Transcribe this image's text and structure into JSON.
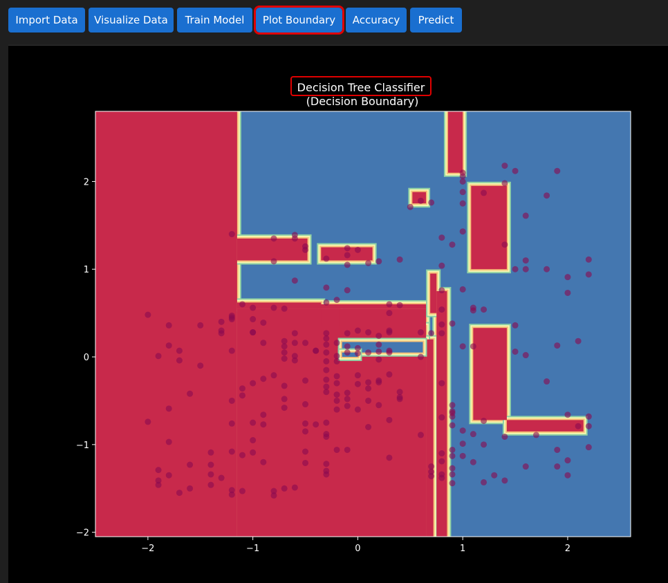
{
  "toolbar": {
    "buttons": [
      {
        "label": "Import Data"
      },
      {
        "label": "Visualize Data"
      },
      {
        "label": "Train Model"
      },
      {
        "label": "Plot Boundary",
        "highlighted": true
      },
      {
        "label": "Accuracy"
      },
      {
        "label": "Predict"
      }
    ]
  },
  "colors": {
    "class0": "#c8294b",
    "class1": "#4477b0",
    "point": "#8b0a50",
    "highlight": "#e00000",
    "button": "#1a6fd0"
  },
  "chart_data": {
    "type": "scatter",
    "title": "Decision Tree Classifier",
    "subtitle": "(Decision Boundary)",
    "xlim": [
      -2.5,
      2.6
    ],
    "ylim": [
      -2.05,
      2.8
    ],
    "xticks": [
      -2,
      -1,
      0,
      1,
      2
    ],
    "yticks": [
      -2,
      -1,
      0,
      1,
      2
    ],
    "xtick_labels": [
      "−2",
      "−1",
      "0",
      "1",
      "2"
    ],
    "ytick_labels": [
      "−2",
      "−1",
      "0",
      "1",
      "2"
    ],
    "grid": false,
    "regions_class0": [
      [
        -2.5,
        -1.15,
        -2.05,
        2.8
      ],
      [
        -1.15,
        0.65,
        -2.05,
        0.55
      ],
      [
        -1.15,
        0.65,
        0.55,
        0.6
      ],
      [
        -1.15,
        -0.48,
        1.1,
        1.35
      ],
      [
        -1.15,
        -0.35,
        0.55,
        0.62
      ],
      [
        -0.35,
        -0.17,
        0.35,
        0.55
      ],
      [
        -0.17,
        0.65,
        0.2,
        0.35
      ],
      [
        0.75,
        0.85,
        -2.05,
        0.75
      ],
      [
        0.69,
        0.75,
        0.5,
        0.95
      ],
      [
        0.65,
        0.72,
        -2.05,
        0.2
      ],
      [
        -0.35,
        0.14,
        1.1,
        1.25
      ],
      [
        0.86,
        1.0,
        2.1,
        2.8
      ],
      [
        1.08,
        1.42,
        1.0,
        1.95
      ],
      [
        0.52,
        0.65,
        1.75,
        1.88
      ],
      [
        1.1,
        1.42,
        -0.72,
        0.33
      ],
      [
        1.42,
        2.15,
        -0.85,
        -0.72
      ],
      [
        -0.17,
        0.65,
        0.05,
        0.2
      ]
    ],
    "regions_class1_overlay": [
      [
        -0.15,
        0.62,
        0.05,
        0.17
      ],
      [
        -0.15,
        0.0,
        0.0,
        0.05
      ]
    ],
    "points": [
      [
        -2.0,
        0.48
      ],
      [
        -1.9,
        0.01
      ],
      [
        -1.8,
        0.36
      ],
      [
        -1.8,
        0.13
      ],
      [
        -1.7,
        0.07
      ],
      [
        -1.7,
        -0.04
      ],
      [
        -1.5,
        0.36
      ],
      [
        -1.5,
        -0.1
      ],
      [
        -1.6,
        -0.42
      ],
      [
        -1.8,
        -0.59
      ],
      [
        -2.0,
        -0.74
      ],
      [
        -1.8,
        -0.97
      ],
      [
        -1.6,
        -1.23
      ],
      [
        -1.8,
        -1.35
      ],
      [
        -1.9,
        -1.29
      ],
      [
        -1.9,
        -1.41
      ],
      [
        -1.9,
        -1.46
      ],
      [
        -1.7,
        -1.55
      ],
      [
        -1.6,
        -1.5
      ],
      [
        -1.4,
        -1.09
      ],
      [
        -1.4,
        -1.23
      ],
      [
        -1.4,
        -1.34
      ],
      [
        -1.4,
        -1.46
      ],
      [
        -1.3,
        -1.38
      ],
      [
        -1.2,
        -1.52
      ],
      [
        -1.2,
        -1.57
      ],
      [
        -1.1,
        -1.53
      ],
      [
        -1.2,
        -1.08
      ],
      [
        -1.1,
        -1.12
      ],
      [
        -1.0,
        -1.09
      ],
      [
        -0.9,
        -1.2
      ],
      [
        -1.0,
        -0.95
      ],
      [
        -1.0,
        -0.75
      ],
      [
        -0.9,
        -0.66
      ],
      [
        -0.9,
        -0.77
      ],
      [
        -1.2,
        -0.76
      ],
      [
        -1.2,
        -0.5
      ],
      [
        -1.1,
        -0.44
      ],
      [
        -1.1,
        -0.36
      ],
      [
        -1.0,
        -0.3
      ],
      [
        -0.9,
        -0.25
      ],
      [
        -0.8,
        -0.21
      ],
      [
        -0.7,
        -0.33
      ],
      [
        -0.7,
        -0.48
      ],
      [
        -0.7,
        -0.58
      ],
      [
        -0.7,
        -1.5
      ],
      [
        -0.8,
        -1.53
      ],
      [
        -0.8,
        -1.58
      ],
      [
        -0.6,
        -1.49
      ],
      [
        -0.5,
        -1.08
      ],
      [
        -0.5,
        -1.21
      ],
      [
        -0.5,
        -0.76
      ],
      [
        -0.5,
        -0.85
      ],
      [
        -0.4,
        -0.77
      ],
      [
        -0.3,
        -0.75
      ],
      [
        -0.3,
        -0.88
      ],
      [
        -0.3,
        -0.91
      ],
      [
        -0.3,
        -1.22
      ],
      [
        -0.3,
        -1.3
      ],
      [
        -0.3,
        -1.34
      ],
      [
        -0.2,
        -1.06
      ],
      [
        -0.1,
        -1.06
      ],
      [
        -0.2,
        -0.6
      ],
      [
        -0.2,
        -0.5
      ],
      [
        -0.2,
        -0.43
      ],
      [
        -0.1,
        -0.48
      ],
      [
        -0.1,
        -0.56
      ],
      [
        -0.2,
        -0.3
      ],
      [
        -0.2,
        -0.22
      ],
      [
        -0.3,
        -0.26
      ],
      [
        -0.3,
        -0.34
      ],
      [
        -0.3,
        -0.4
      ],
      [
        -0.3,
        -0.15
      ],
      [
        -0.3,
        -0.05
      ],
      [
        -0.5,
        -0.27
      ],
      [
        -0.5,
        -0.54
      ],
      [
        -0.6,
        0.01
      ],
      [
        -0.5,
        0.16
      ],
      [
        -0.4,
        0.07
      ],
      [
        -0.3,
        0.05
      ],
      [
        -0.3,
        0.14
      ],
      [
        -0.3,
        0.27
      ],
      [
        -0.1,
        0.27
      ],
      [
        0.0,
        0.3
      ],
      [
        0.1,
        0.28
      ],
      [
        0.2,
        0.24
      ],
      [
        0.3,
        0.28
      ],
      [
        0.3,
        0.3
      ],
      [
        0.0,
        0.1
      ],
      [
        0.1,
        0.05
      ],
      [
        0.0,
        0.04
      ],
      [
        0.2,
        0.06
      ],
      [
        0.3,
        0.07
      ],
      [
        0.3,
        0.05
      ],
      [
        0.3,
        -0.2
      ],
      [
        0.2,
        -0.29
      ],
      [
        0.1,
        -0.29
      ],
      [
        0.0,
        -0.21
      ],
      [
        0.0,
        -0.31
      ],
      [
        0.1,
        -0.36
      ],
      [
        0.2,
        -0.27
      ],
      [
        0.1,
        -0.5
      ],
      [
        0.0,
        -0.6
      ],
      [
        0.2,
        -0.55
      ],
      [
        0.4,
        -0.46
      ],
      [
        0.4,
        -0.48
      ],
      [
        0.4,
        -0.4
      ],
      [
        0.3,
        -0.72
      ],
      [
        0.3,
        -1.15
      ],
      [
        0.1,
        -0.8
      ],
      [
        -0.1,
        -0.41
      ],
      [
        -0.2,
        -0.05
      ],
      [
        -0.1,
        0.05
      ],
      [
        -0.1,
        0.12
      ],
      [
        -0.2,
        0.16
      ],
      [
        0.2,
        0.14
      ],
      [
        0.2,
        -0.03
      ],
      [
        -0.6,
        -0.04
      ],
      [
        -0.6,
        0.16
      ],
      [
        -0.6,
        0.27
      ],
      [
        -0.7,
        0.55
      ],
      [
        -0.8,
        0.56
      ],
      [
        -1.0,
        0.56
      ],
      [
        -1.1,
        0.6
      ],
      [
        -1.2,
        0.47
      ],
      [
        -1.3,
        0.4
      ],
      [
        -1.3,
        0.3
      ],
      [
        -1.3,
        0.27
      ],
      [
        -1.2,
        0.43
      ],
      [
        -1.0,
        0.43
      ],
      [
        -0.9,
        0.39
      ],
      [
        -1.0,
        0.28
      ],
      [
        -1.2,
        0.07
      ],
      [
        -1.0,
        0.28
      ],
      [
        -1.2,
        0.45
      ],
      [
        -0.9,
        0.16
      ],
      [
        -0.7,
        0.05
      ],
      [
        -0.7,
        0.18
      ],
      [
        -0.7,
        0.12
      ],
      [
        -0.7,
        -0.02
      ],
      [
        -0.3,
        0.21
      ],
      [
        -0.4,
        0.07
      ],
      [
        -0.2,
        0.01
      ],
      [
        0.6,
        0.0
      ],
      [
        -0.8,
        1.35
      ],
      [
        -1.2,
        1.4
      ],
      [
        -0.8,
        1.09
      ],
      [
        -0.6,
        1.39
      ],
      [
        -0.5,
        1.26
      ],
      [
        -0.6,
        1.35
      ],
      [
        -0.5,
        1.22
      ],
      [
        -0.6,
        0.87
      ],
      [
        -0.3,
        1.12
      ],
      [
        -0.3,
        0.79
      ],
      [
        -0.3,
        0.62
      ],
      [
        -0.2,
        0.65
      ],
      [
        -0.1,
        0.76
      ],
      [
        -0.1,
        1.05
      ],
      [
        -0.1,
        1.24
      ],
      [
        -0.1,
        1.16
      ],
      [
        0.0,
        1.22
      ],
      [
        0.1,
        1.07
      ],
      [
        0.2,
        1.09
      ],
      [
        0.3,
        0.6
      ],
      [
        0.4,
        0.59
      ],
      [
        0.3,
        0.5
      ],
      [
        0.4,
        1.11
      ],
      [
        0.5,
        1.71
      ],
      [
        0.6,
        1.78
      ],
      [
        0.7,
        1.76
      ],
      [
        0.8,
        1.36
      ],
      [
        0.8,
        1.04
      ],
      [
        0.9,
        1.28
      ],
      [
        1.0,
        1.43
      ],
      [
        1.0,
        1.75
      ],
      [
        1.0,
        1.88
      ],
      [
        1.0,
        2.06
      ],
      [
        1.0,
        2.0
      ],
      [
        1.0,
        2.1
      ],
      [
        1.2,
        1.87
      ],
      [
        1.4,
        2.18
      ],
      [
        1.4,
        1.98
      ],
      [
        1.4,
        1.28
      ],
      [
        1.5,
        2.12
      ],
      [
        1.6,
        1.61
      ],
      [
        1.8,
        1.84
      ],
      [
        1.8,
        1.0
      ],
      [
        1.9,
        2.12
      ],
      [
        2.0,
        0.91
      ],
      [
        2.0,
        0.73
      ],
      [
        2.1,
        0.18
      ],
      [
        2.2,
        1.11
      ],
      [
        2.2,
        0.94
      ],
      [
        1.5,
        1.0
      ],
      [
        1.6,
        1.1
      ],
      [
        1.6,
        1.0
      ],
      [
        1.0,
        0.77
      ],
      [
        0.8,
        0.76
      ],
      [
        0.8,
        0.54
      ],
      [
        0.8,
        0.37
      ],
      [
        0.8,
        0.27
      ],
      [
        0.7,
        0.27
      ],
      [
        0.6,
        0.28
      ],
      [
        0.9,
        0.38
      ],
      [
        1.0,
        0.12
      ],
      [
        1.1,
        0.12
      ],
      [
        1.1,
        0.53
      ],
      [
        1.1,
        0.56
      ],
      [
        1.2,
        0.54
      ],
      [
        1.5,
        0.36
      ],
      [
        1.6,
        0.02
      ],
      [
        1.5,
        0.06
      ],
      [
        1.8,
        -0.28
      ],
      [
        1.9,
        0.13
      ],
      [
        2.0,
        -0.66
      ],
      [
        2.1,
        -0.79
      ],
      [
        2.2,
        -0.68
      ],
      [
        2.2,
        -0.79
      ],
      [
        2.2,
        -1.03
      ],
      [
        2.0,
        -1.18
      ],
      [
        2.0,
        -1.35
      ],
      [
        1.9,
        -1.25
      ],
      [
        1.9,
        -1.06
      ],
      [
        1.6,
        -1.25
      ],
      [
        1.7,
        -0.89
      ],
      [
        1.4,
        -0.91
      ],
      [
        1.3,
        -1.35
      ],
      [
        1.4,
        -1.41
      ],
      [
        1.2,
        -1.43
      ],
      [
        1.2,
        -1.0
      ],
      [
        1.2,
        -0.73
      ],
      [
        1.1,
        -0.88
      ],
      [
        1.0,
        -0.84
      ],
      [
        1.0,
        -0.99
      ],
      [
        1.0,
        -1.13
      ],
      [
        0.9,
        -1.06
      ],
      [
        0.9,
        -1.13
      ],
      [
        0.9,
        -1.27
      ],
      [
        1.1,
        -1.2
      ],
      [
        0.9,
        -0.78
      ],
      [
        0.9,
        -0.68
      ],
      [
        0.9,
        -0.64
      ],
      [
        0.9,
        -0.55
      ],
      [
        0.9,
        -0.62
      ],
      [
        0.8,
        -0.3
      ],
      [
        0.6,
        -0.89
      ],
      [
        0.8,
        -0.69
      ],
      [
        0.8,
        -1.1
      ],
      [
        0.8,
        -1.19
      ],
      [
        0.8,
        -1.38
      ],
      [
        0.7,
        -1.25
      ],
      [
        0.7,
        -1.36
      ],
      [
        0.7,
        -1.31
      ],
      [
        0.8,
        -1.34
      ],
      [
        0.9,
        -1.34
      ],
      [
        0.9,
        -1.44
      ]
    ]
  }
}
